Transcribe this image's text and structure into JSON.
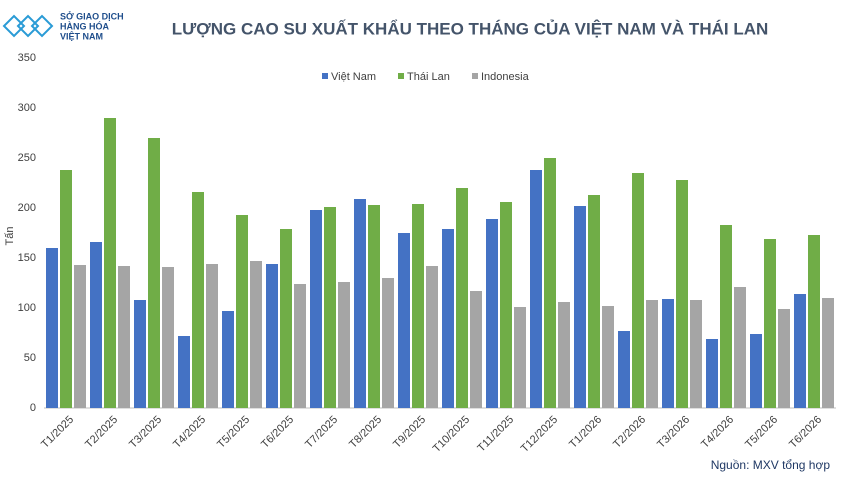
{
  "logo": {
    "lines": [
      "SỞ GIAO DỊCH",
      "HÀNG HÓA",
      "VIỆT NAM"
    ]
  },
  "chart_data": {
    "type": "bar",
    "title": "LƯỢNG CAO SU XUẤT KHẨU THEO THÁNG CỦA VIỆT NAM VÀ THÁI LAN",
    "y_label": "Tấn",
    "source": "Nguồn: MXV tổng hợp",
    "categories": [
      "T1/2025",
      "T2/2025",
      "T3/2025",
      "T4/2025",
      "T5/2025",
      "T6/2025",
      "T7/2025",
      "T8/2025",
      "T9/2025",
      "T10/2025",
      "T11/2025",
      "T12/2025",
      "T1/2026",
      "T2/2026",
      "T3/2026",
      "T4/2026",
      "T5/2026",
      "T6/2026"
    ],
    "series": [
      {
        "name": "Việt Nam",
        "color": "#4472c4",
        "values": [
          160,
          166,
          108,
          72,
          97,
          144,
          198,
          209,
          175,
          179,
          189,
          238,
          202,
          77,
          109,
          69,
          74,
          114
        ]
      },
      {
        "name": "Thái Lan",
        "color": "#70ad47",
        "values": [
          238,
          290,
          270,
          216,
          193,
          179,
          201,
          203,
          204,
          220,
          206,
          250,
          213,
          235,
          228,
          183,
          169,
          173
        ]
      },
      {
        "name": "Indonesia",
        "color": "#a5a5a5",
        "values": [
          143,
          142,
          141,
          144,
          147,
          124,
          126,
          130,
          142,
          117,
          101,
          106,
          102,
          108,
          108,
          121,
          99,
          110
        ]
      }
    ],
    "ylim": [
      0,
      350
    ],
    "yticks": [
      0,
      50,
      100,
      150,
      200,
      250,
      300,
      350
    ],
    "grid": false
  }
}
